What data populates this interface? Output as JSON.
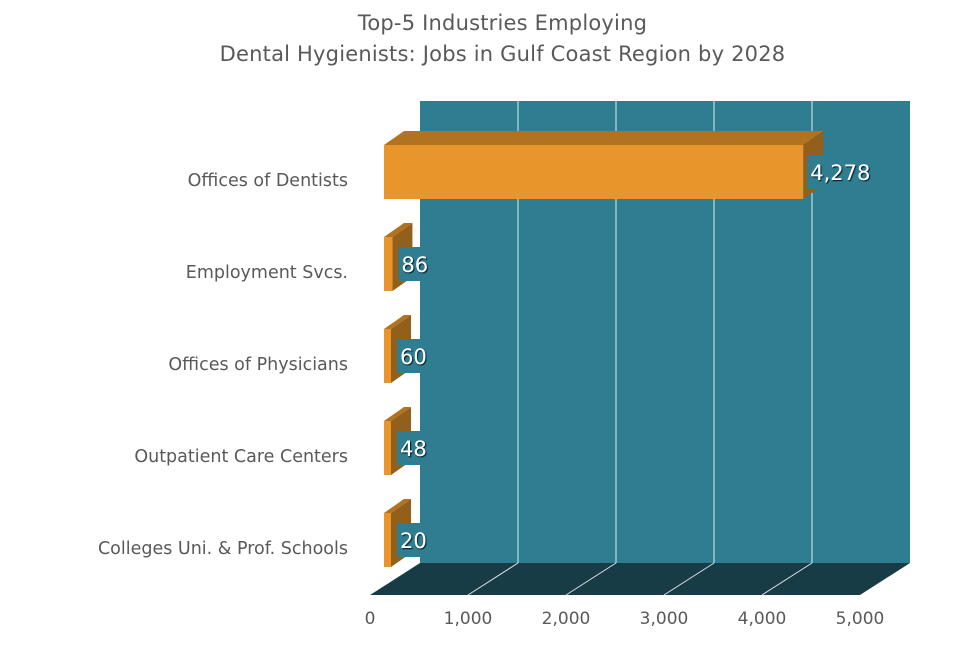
{
  "chart_data": {
    "type": "bar",
    "orientation": "horizontal",
    "style": "3d",
    "title": "Top-5 Industries Employing Dental Hygienists: Jobs in Gulf Coast Region by 2028",
    "title_lines": [
      "Top-5 Industries Employing",
      "Dental Hygienists: Jobs in Gulf Coast Region by 2028"
    ],
    "categories": [
      "Offices of Dentists",
      "Employment Svcs.",
      "Offices of Physicians",
      "Outpatient Care Centers",
      "Colleges Uni. & Prof. Schools"
    ],
    "values": [
      4278,
      86,
      60,
      48,
      20
    ],
    "value_labels": [
      "4,278",
      "86",
      "60",
      "48",
      "20"
    ],
    "xlabel": "",
    "ylabel": "",
    "xlim": [
      0,
      5000
    ],
    "x_ticks": [
      0,
      1000,
      2000,
      3000,
      4000,
      5000
    ],
    "x_tick_labels": [
      "0",
      "1,000",
      "2,000",
      "3,000",
      "4,000",
      "5,000"
    ],
    "grid": true,
    "legend": null
  },
  "colors": {
    "wall": "#2e7d91",
    "floor": "#183c46",
    "bar_front": "#e8962c",
    "bar_top": "#b1731f",
    "bar_side": "#93601b",
    "gridline": "#ffffff",
    "text": "#595959",
    "value_label": "#ffffff"
  }
}
